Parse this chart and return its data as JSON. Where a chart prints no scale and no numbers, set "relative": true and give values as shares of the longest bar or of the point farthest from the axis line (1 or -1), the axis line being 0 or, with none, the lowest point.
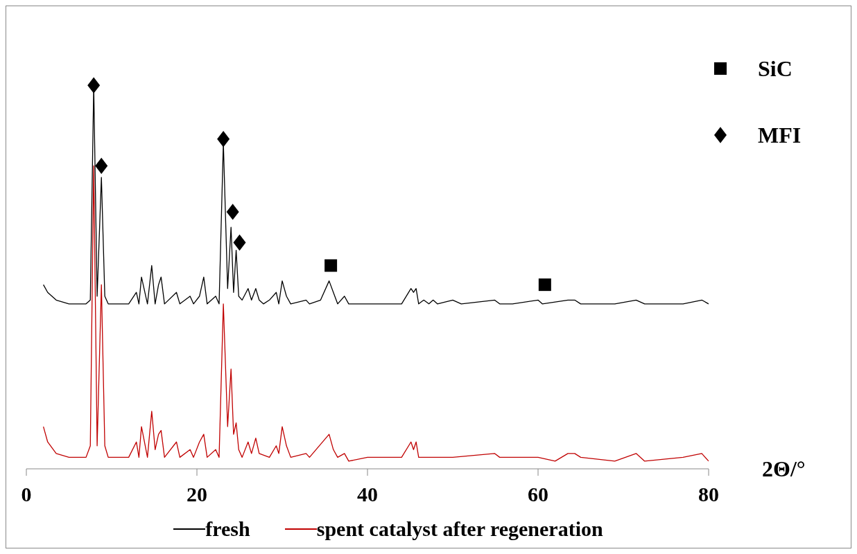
{
  "chart_data": {
    "type": "line",
    "xlabel": "2Θ/°",
    "relative": true,
    "xlim": [
      0,
      80
    ],
    "xticks": [
      0,
      20,
      40,
      60,
      80
    ],
    "tick_labels": "x",
    "legend": "bottom",
    "grid": false,
    "series": [
      {
        "name": "fresh",
        "color": "#000000",
        "x": [
          2,
          2.5,
          3.5,
          5,
          7,
          7.5,
          7.9,
          8.3,
          8.8,
          9.2,
          9.6,
          12,
          12.9,
          13.2,
          13.5,
          14.2,
          14.7,
          15.1,
          15.5,
          15.8,
          16.2,
          17.6,
          18,
          19.2,
          19.6,
          20.3,
          20.8,
          21.2,
          22.2,
          22.6,
          23.1,
          23.6,
          24,
          24.3,
          24.6,
          24.9,
          25.3,
          26,
          26.4,
          26.9,
          27.3,
          27.8,
          28.5,
          29.3,
          29.6,
          30,
          30.5,
          31,
          32.8,
          33.2,
          34.5,
          35.5,
          36,
          36.5,
          37.3,
          37.8,
          40,
          42,
          44,
          45.1,
          45.4,
          45.7,
          46,
          46.6,
          47.2,
          47.7,
          48.2,
          50,
          51,
          54.9,
          55.5,
          57,
          60,
          60.5,
          63.5,
          64.3,
          65,
          66.5,
          69,
          71.5,
          72.5,
          77,
          79.2,
          80
        ],
        "values": [
          0.48,
          0.46,
          0.44,
          0.43,
          0.43,
          0.44,
          1.0,
          0.45,
          0.76,
          0.45,
          0.43,
          0.43,
          0.46,
          0.43,
          0.5,
          0.43,
          0.53,
          0.43,
          0.48,
          0.5,
          0.43,
          0.46,
          0.43,
          0.45,
          0.43,
          0.45,
          0.5,
          0.43,
          0.45,
          0.43,
          0.85,
          0.47,
          0.63,
          0.46,
          0.57,
          0.45,
          0.44,
          0.47,
          0.44,
          0.47,
          0.44,
          0.43,
          0.44,
          0.46,
          0.43,
          0.49,
          0.45,
          0.43,
          0.44,
          0.43,
          0.44,
          0.49,
          0.46,
          0.43,
          0.45,
          0.43,
          0.43,
          0.43,
          0.43,
          0.47,
          0.46,
          0.47,
          0.43,
          0.44,
          0.43,
          0.44,
          0.43,
          0.44,
          0.43,
          0.44,
          0.43,
          0.43,
          0.44,
          0.43,
          0.44,
          0.44,
          0.43,
          0.43,
          0.43,
          0.44,
          0.43,
          0.43,
          0.44,
          0.43
        ]
      },
      {
        "name": "spent catalyst after regeneration",
        "color": "#c00000",
        "x": [
          2,
          2.5,
          3.5,
          5,
          7,
          7.5,
          7.9,
          8.3,
          8.8,
          9.2,
          9.6,
          12,
          12.9,
          13.2,
          13.5,
          14.2,
          14.7,
          15.1,
          15.5,
          15.8,
          16.2,
          17.6,
          18,
          19.2,
          19.6,
          20.3,
          20.8,
          21.2,
          22.2,
          22.6,
          23.1,
          23.6,
          24,
          24.3,
          24.6,
          24.9,
          25.3,
          26,
          26.4,
          26.9,
          27.3,
          28.5,
          29.3,
          29.6,
          30,
          30.5,
          31,
          32.8,
          33.2,
          35.5,
          36,
          36.5,
          37.3,
          37.8,
          40,
          44,
          45.1,
          45.4,
          45.7,
          46,
          47.2,
          50,
          54.9,
          55.5,
          57,
          60,
          62,
          63.5,
          64.3,
          65,
          69,
          71.5,
          72.5,
          77,
          79.2,
          80
        ],
        "values": [
          0.11,
          0.07,
          0.04,
          0.03,
          0.03,
          0.06,
          0.79,
          0.06,
          0.48,
          0.06,
          0.03,
          0.03,
          0.07,
          0.03,
          0.11,
          0.03,
          0.15,
          0.05,
          0.09,
          0.1,
          0.03,
          0.07,
          0.03,
          0.05,
          0.03,
          0.07,
          0.09,
          0.03,
          0.05,
          0.03,
          0.43,
          0.11,
          0.26,
          0.09,
          0.12,
          0.05,
          0.03,
          0.07,
          0.04,
          0.08,
          0.04,
          0.03,
          0.06,
          0.04,
          0.11,
          0.06,
          0.03,
          0.04,
          0.03,
          0.09,
          0.05,
          0.03,
          0.04,
          0.02,
          0.03,
          0.03,
          0.07,
          0.05,
          0.07,
          0.03,
          0.03,
          0.03,
          0.04,
          0.03,
          0.03,
          0.03,
          0.02,
          0.04,
          0.04,
          0.03,
          0.02,
          0.04,
          0.02,
          0.03,
          0.04,
          0.02
        ]
      },
      {
        "name": "SiC",
        "type": "scatter",
        "marker": "square",
        "color": "#000000",
        "x": [
          35.7,
          60.8
        ],
        "values": [
          0.53,
          0.48
        ]
      },
      {
        "name": "MFI",
        "type": "scatter",
        "marker": "diamond",
        "color": "#000000",
        "x": [
          7.9,
          8.8,
          23.1,
          24.2,
          25.0
        ],
        "values": [
          1.0,
          0.79,
          0.86,
          0.67,
          0.59
        ]
      }
    ]
  }
}
